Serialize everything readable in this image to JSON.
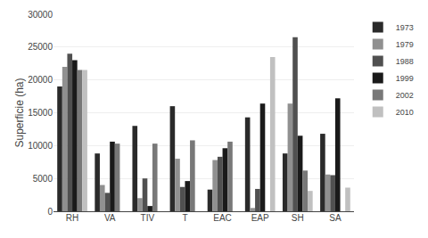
{
  "chart_data": {
    "type": "bar",
    "categories": [
      "RH",
      "VA",
      "TIV",
      "T",
      "EAC",
      "EAP",
      "SH",
      "SA"
    ],
    "series": [
      {
        "name": "1973",
        "color": "#2a2a2a",
        "values": [
          19000,
          8800,
          13000,
          16000,
          3300,
          14300,
          8800,
          11800
        ]
      },
      {
        "name": "1979",
        "color": "#909090",
        "values": [
          22000,
          4000,
          2000,
          8000,
          7800,
          500,
          16400,
          5600
        ]
      },
      {
        "name": "1988",
        "color": "#505050",
        "values": [
          24000,
          2800,
          5000,
          3700,
          8300,
          3400,
          26500,
          5500
        ]
      },
      {
        "name": "1999",
        "color": "#1a1a1a",
        "values": [
          23000,
          10600,
          800,
          4600,
          9600,
          16400,
          11500,
          17200
        ]
      },
      {
        "name": "2002",
        "color": "#787878",
        "values": [
          21500,
          10300,
          10300,
          10800,
          10600,
          0,
          6200,
          0
        ]
      },
      {
        "name": "2010",
        "color": "#c0c0c0",
        "values": [
          21500,
          0,
          0,
          0,
          0,
          23500,
          3100,
          3600
        ]
      }
    ],
    "ylabel": "Superficie (ha)",
    "ylim": [
      0,
      30000
    ],
    "yticks": [
      0,
      5000,
      10000,
      15000,
      20000,
      25000,
      30000
    ],
    "grid": true,
    "legend": "upper right"
  }
}
